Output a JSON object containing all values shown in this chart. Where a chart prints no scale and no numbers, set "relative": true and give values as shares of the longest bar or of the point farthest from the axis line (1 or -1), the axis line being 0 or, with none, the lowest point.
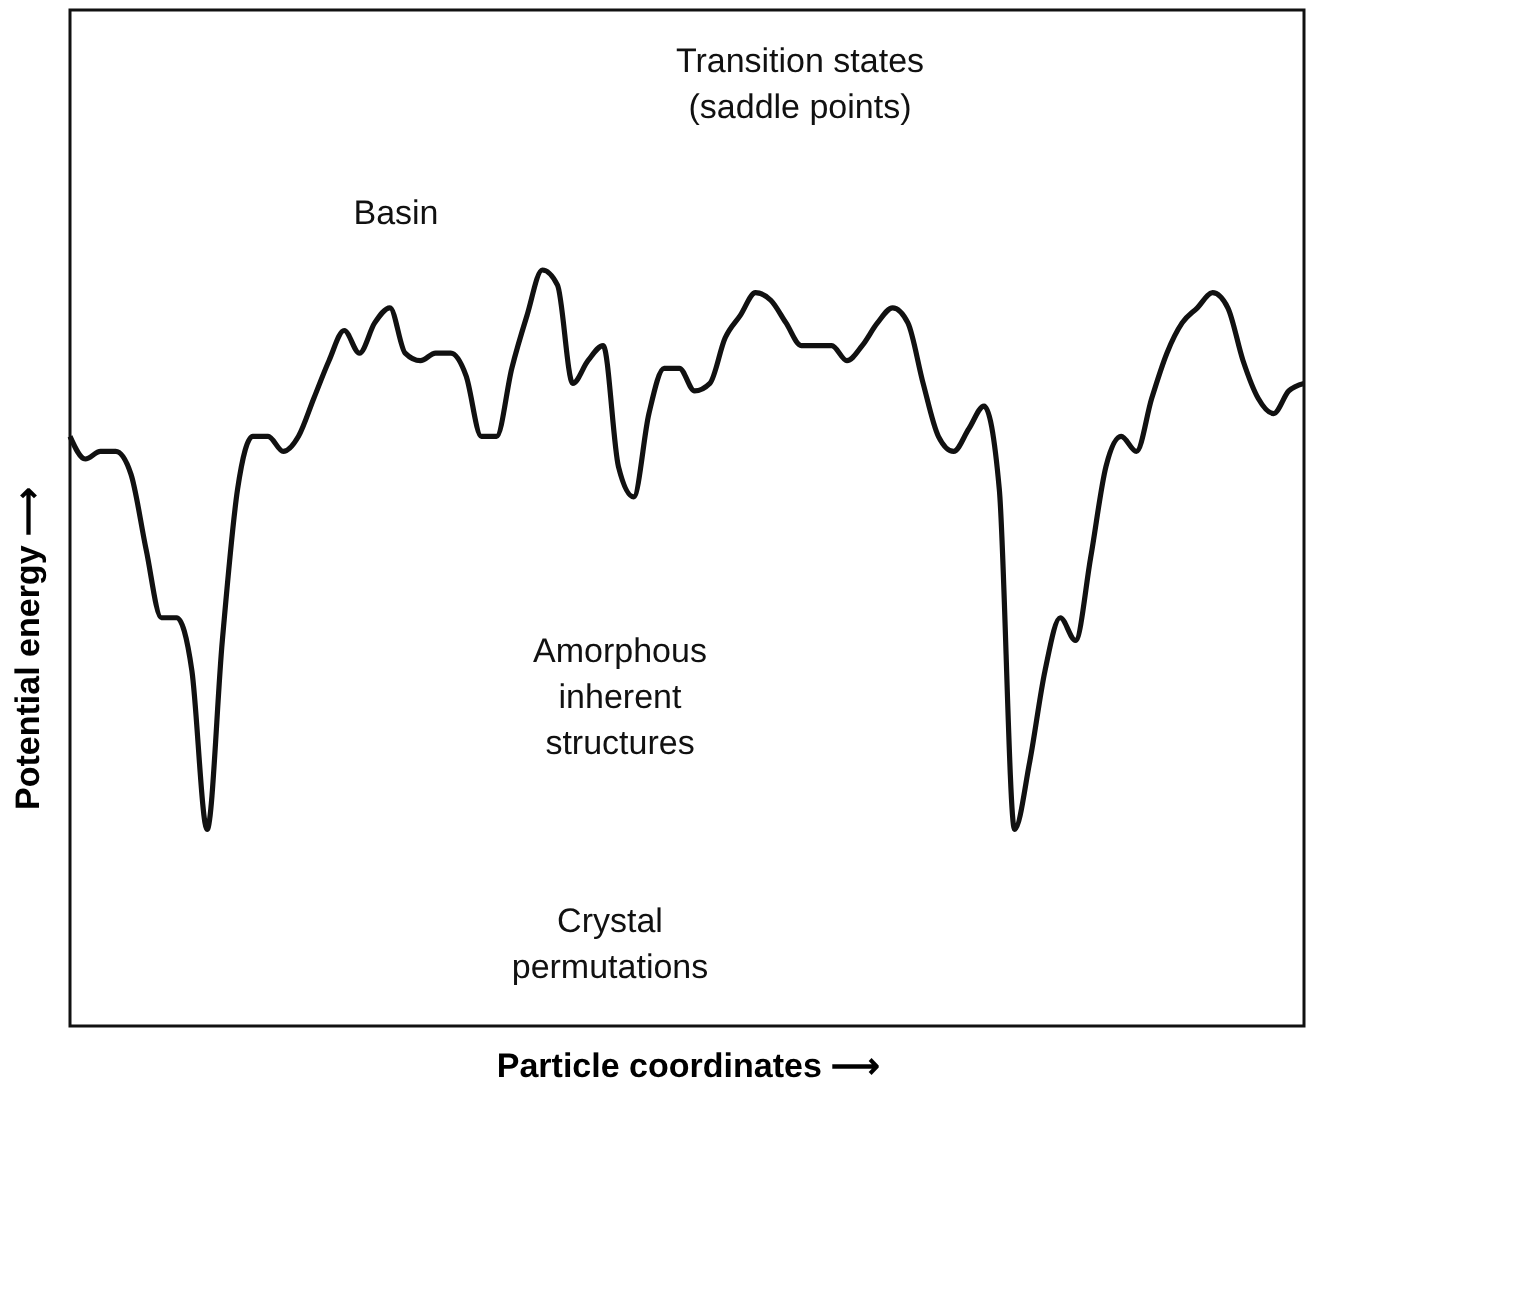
{
  "chart_data": {
    "type": "line",
    "relative": true,
    "xlabel": "Particle coordinates ⟶",
    "ylabel": "Potential energy ⟶",
    "tick_labels": false,
    "grid": false,
    "marker": "none",
    "line_style": "solid",
    "categories": [
      null,
      null,
      null,
      null,
      null,
      null,
      null,
      null,
      null,
      null,
      null,
      null,
      null,
      null,
      null,
      null,
      null,
      null,
      null,
      null,
      null,
      null,
      null,
      null,
      null,
      null,
      null,
      null,
      null,
      null,
      null,
      null,
      null,
      null,
      null,
      null,
      null,
      null,
      null,
      null,
      null,
      null,
      null,
      null,
      null,
      null,
      null,
      null,
      null,
      null,
      null,
      null,
      null,
      null,
      null,
      null,
      null,
      null,
      null,
      null,
      null,
      null,
      null,
      null,
      null,
      null,
      null,
      null,
      null,
      null,
      null,
      null,
      null,
      null,
      null,
      null,
      null,
      null,
      null,
      null,
      null,
      null
    ],
    "series": [
      {
        "color": "#111111",
        "values": [
          0.78,
          0.75,
          0.76,
          0.76,
          0.73,
          0.63,
          0.54,
          0.54,
          0.47,
          0.26,
          0.51,
          0.71,
          0.78,
          0.78,
          0.76,
          0.78,
          0.83,
          0.88,
          0.92,
          0.89,
          0.93,
          0.95,
          0.89,
          0.88,
          0.89,
          0.89,
          0.86,
          0.78,
          0.78,
          0.87,
          0.94,
          1.0,
          0.98,
          0.85,
          0.88,
          0.9,
          0.74,
          0.7,
          0.81,
          0.87,
          0.87,
          0.84,
          0.85,
          0.91,
          0.94,
          0.97,
          0.96,
          0.93,
          0.9,
          0.9,
          0.9,
          0.88,
          0.9,
          0.93,
          0.95,
          0.93,
          0.85,
          0.78,
          0.76,
          0.79,
          0.82,
          0.71,
          0.26,
          0.35,
          0.47,
          0.54,
          0.51,
          0.62,
          0.74,
          0.78,
          0.76,
          0.83,
          0.89,
          0.93,
          0.95,
          0.97,
          0.95,
          0.88,
          0.83,
          0.81,
          0.84,
          0.85
        ]
      }
    ],
    "annotations": [
      "Basin",
      "Transition states\n(saddle points)",
      "Amorphous\ninherent\nstructures",
      "Crystal\npermutations"
    ]
  }
}
